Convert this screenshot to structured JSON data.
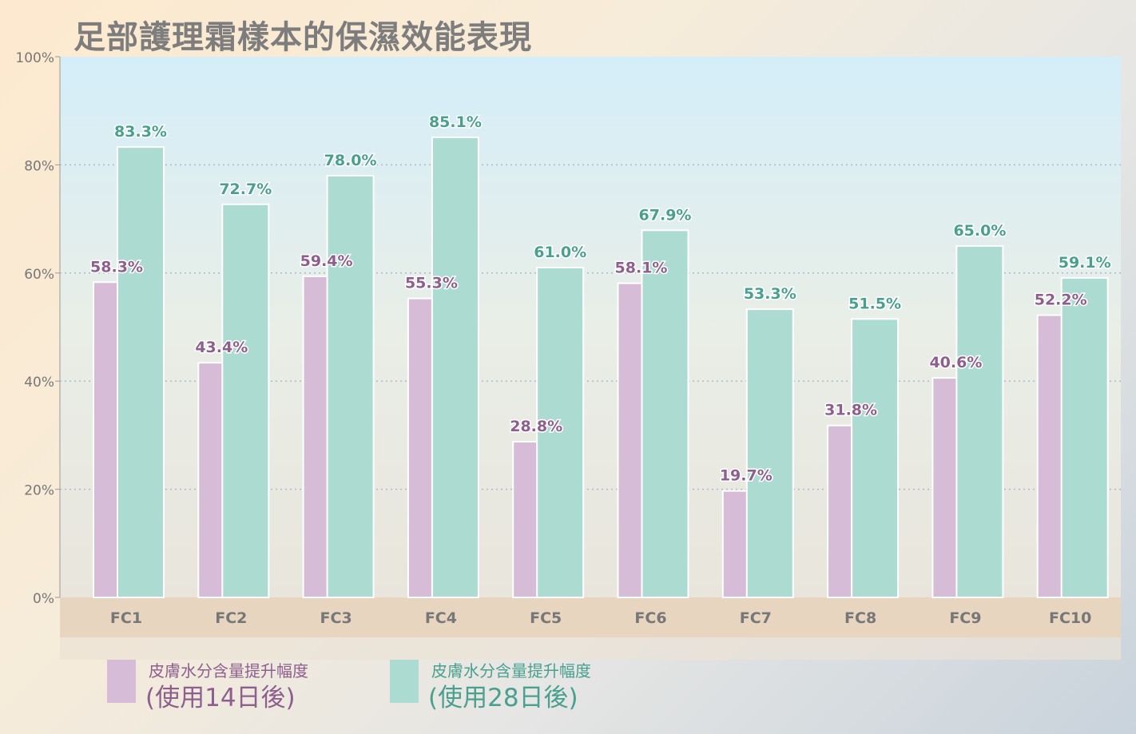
{
  "chart_data": {
    "type": "bar",
    "title": "足部護理霜樣本的保濕效能表現",
    "categories": [
      "FC1",
      "FC2",
      "FC3",
      "FC4",
      "FC5",
      "FC6",
      "FC7",
      "FC8",
      "FC9",
      "FC10"
    ],
    "series": [
      {
        "name_line1": "皮膚水分含量提升幅度",
        "name_line2": "(使用14日後)",
        "values": [
          58.3,
          43.4,
          59.4,
          55.3,
          28.8,
          58.1,
          19.7,
          31.8,
          40.6,
          52.2
        ],
        "labels": [
          "58.3%",
          "43.4%",
          "59.4%",
          "55.3%",
          "28.8%",
          "58.1%",
          "19.7%",
          "31.8%",
          "40.6%",
          "52.2%"
        ],
        "color": "#d6bcd6",
        "label_color": "#8e5f8e"
      },
      {
        "name_line1": "皮膚水分含量提升幅度",
        "name_line2": "(使用28日後)",
        "values": [
          83.3,
          72.7,
          78.0,
          85.1,
          61.0,
          67.9,
          53.3,
          51.5,
          65.0,
          59.1
        ],
        "labels": [
          "83.3%",
          "72.7%",
          "78.0%",
          "85.1%",
          "61.0%",
          "67.9%",
          "53.3%",
          "51.5%",
          "65.0%",
          "59.1%"
        ],
        "color": "#abdbd1",
        "label_color": "#49a08f"
      }
    ],
    "ylim": [
      0,
      100
    ],
    "yticks": [
      0,
      20,
      40,
      60,
      80,
      100
    ],
    "ytick_labels": [
      "0%",
      "20%",
      "40%",
      "60%",
      "80%",
      "100%"
    ],
    "grid": true,
    "legend_position": "bottom-left"
  }
}
